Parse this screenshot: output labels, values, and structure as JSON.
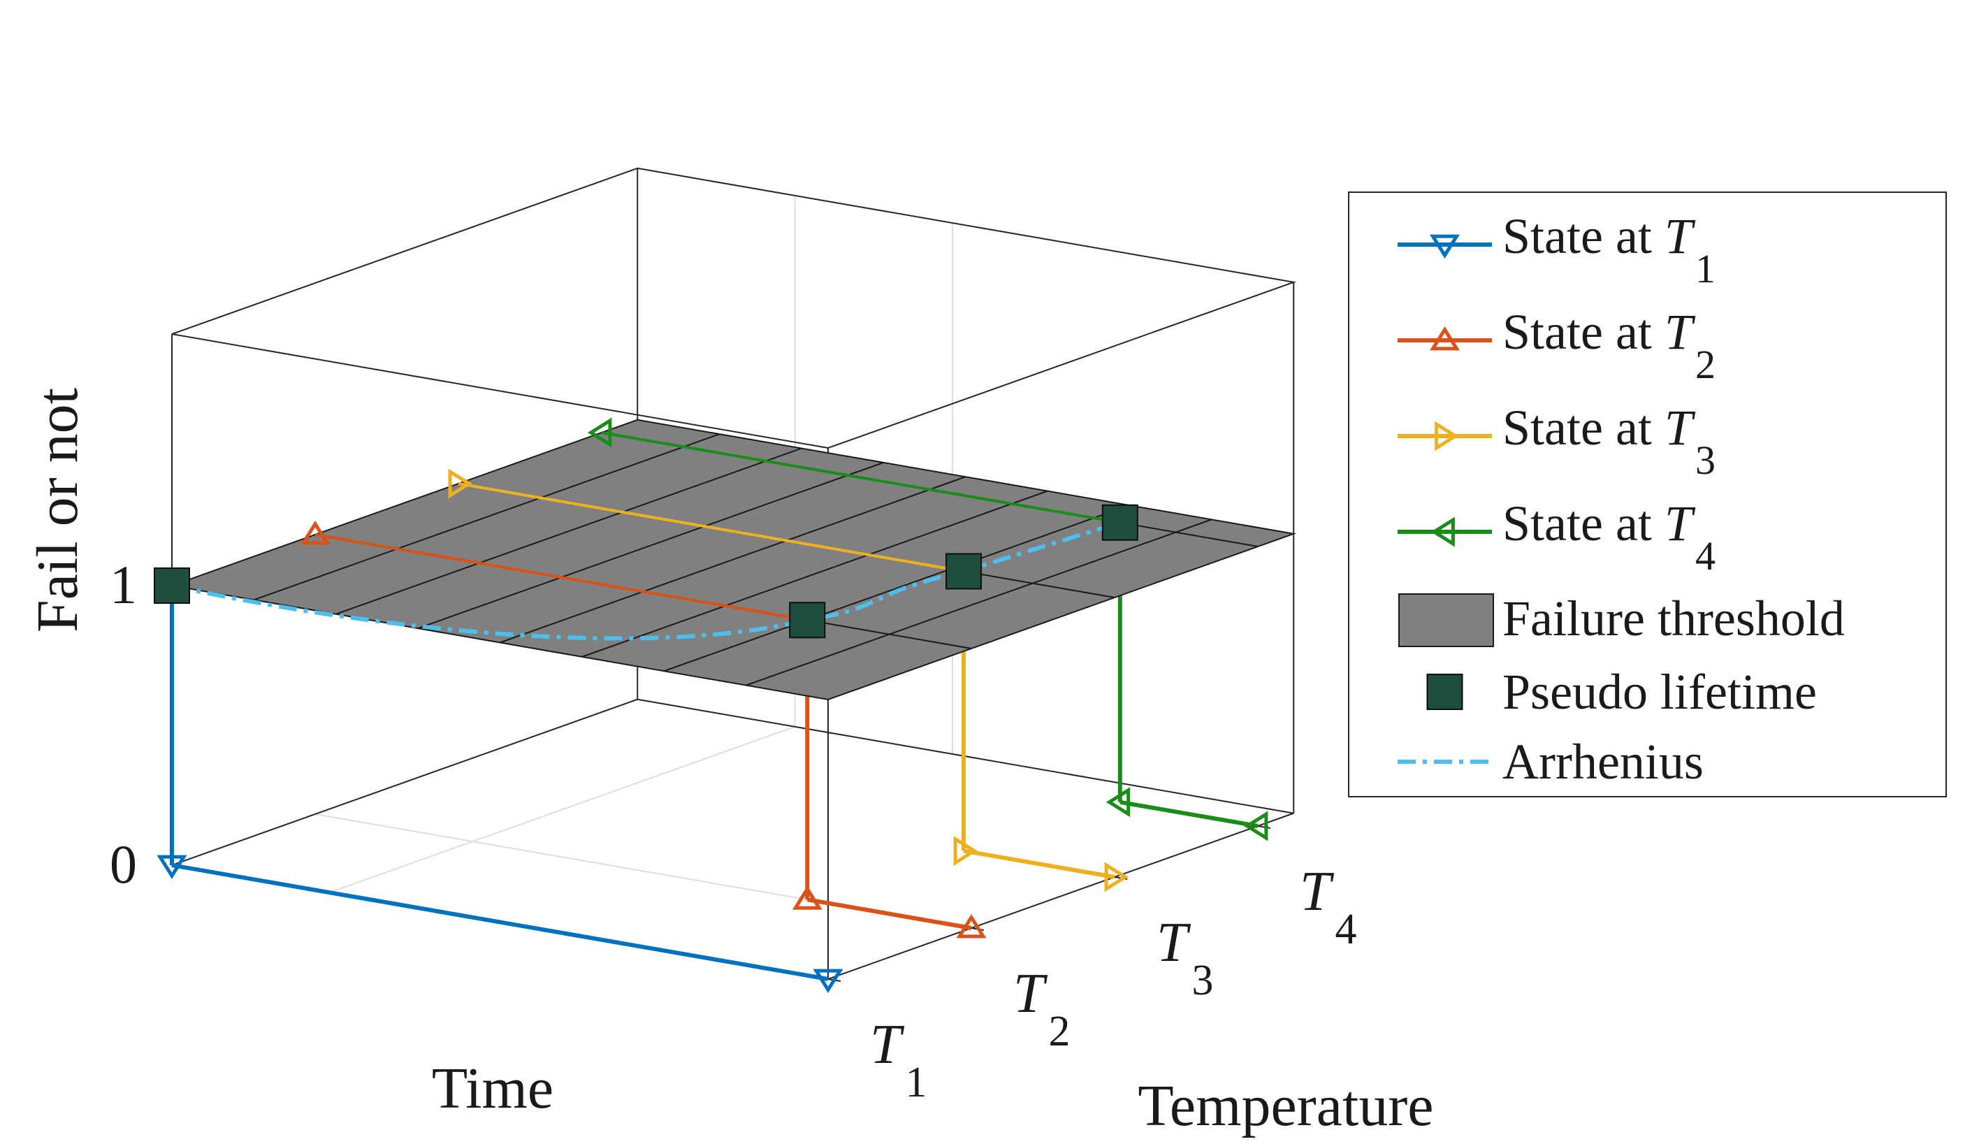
{
  "chart_data": {
    "type": "line",
    "projection": "3d",
    "title": "",
    "xlabel": "Time",
    "ylabel": "Temperature",
    "zlabel": "Fail or not",
    "z_ticks": [
      "0",
      "1"
    ],
    "temperature_levels": [
      {
        "main": "T",
        "sub": "1"
      },
      {
        "main": "T",
        "sub": "2"
      },
      {
        "main": "T",
        "sub": "3"
      },
      {
        "main": "T",
        "sub": "4"
      }
    ],
    "zlim": [
      0,
      1.9
    ],
    "grid": true,
    "legend_position": "right",
    "series": [
      {
        "name_prefix": "State at ",
        "name_var": "T",
        "name_sub": "1",
        "marker": "triangle-down",
        "color": "#0072BD",
        "temperature_index": 0,
        "failure_time": 0.0
      },
      {
        "name_prefix": "State at ",
        "name_var": "T",
        "name_sub": "2",
        "marker": "triangle-up",
        "color": "#D95319",
        "temperature_index": 1,
        "failure_time": 0.75
      },
      {
        "name_prefix": "State at ",
        "name_var": "T",
        "name_sub": "3",
        "marker": "triangle-right",
        "color": "#EDB120",
        "temperature_index": 2,
        "failure_time": 0.77
      },
      {
        "name_prefix": "State at ",
        "name_var": "T",
        "name_sub": "4",
        "marker": "triangle-left",
        "color": "#1A8C1A",
        "temperature_index": 3,
        "failure_time": 0.79
      }
    ],
    "failure_threshold": {
      "name": "Failure threshold",
      "z": 1,
      "color": "#808080"
    },
    "pseudo_lifetime": {
      "name": "Pseudo lifetime",
      "color": "#1F4E3D"
    },
    "arrhenius": {
      "name": "Arrhenius",
      "color": "#4DBEEE"
    }
  }
}
